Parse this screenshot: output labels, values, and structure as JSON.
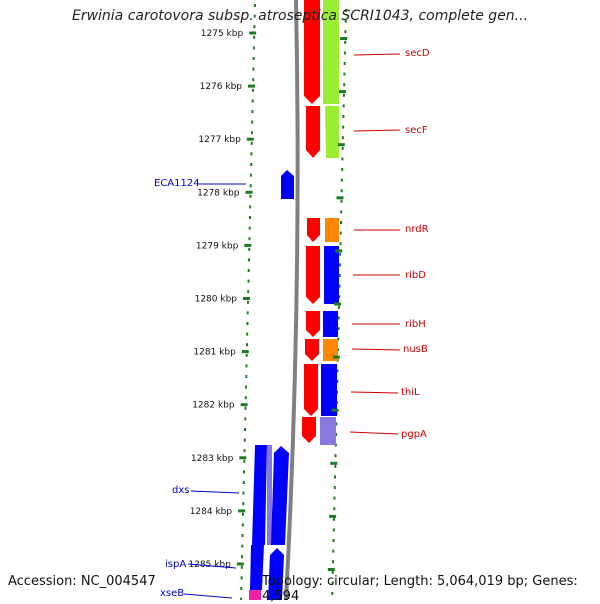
{
  "title": "Erwinia carotovora subsp. atroseptica SCRI1043, complete gen...",
  "footer": {
    "accession": "Accession: NC_004547",
    "summary": "Topology: circular; Length: 5,064,019 bp; Genes: 4,594"
  },
  "colors": {
    "forward_cds": "#ff0000",
    "reverse_cds": "#0000ff",
    "right_label": "#cc0000",
    "left_label": "#0000cc",
    "tick": "#1e7a1e",
    "backbone": "#808080",
    "cog_green": "#99ee33",
    "cog_orange": "#ff8800",
    "cog_purple": "#8877dd",
    "cog_magenta": "#ee22aa"
  },
  "ticks": [
    "1275 kbp",
    "1276 kbp",
    "1277 kbp",
    "1278 kbp",
    "1279 kbp",
    "1280 kbp",
    "1281 kbp",
    "1282 kbp",
    "1283 kbp",
    "1284 kbp",
    "1285 kbp"
  ],
  "genes_right": [
    {
      "name": "secD"
    },
    {
      "name": "secF"
    },
    {
      "name": "nrdR"
    },
    {
      "name": "ribD"
    },
    {
      "name": "ribH"
    },
    {
      "name": "nusB"
    },
    {
      "name": "thiL"
    },
    {
      "name": "pgpA"
    }
  ],
  "genes_left": [
    {
      "name": "ECA1124"
    },
    {
      "name": "dxs"
    },
    {
      "name": "ispA"
    },
    {
      "name": "xseB"
    }
  ]
}
